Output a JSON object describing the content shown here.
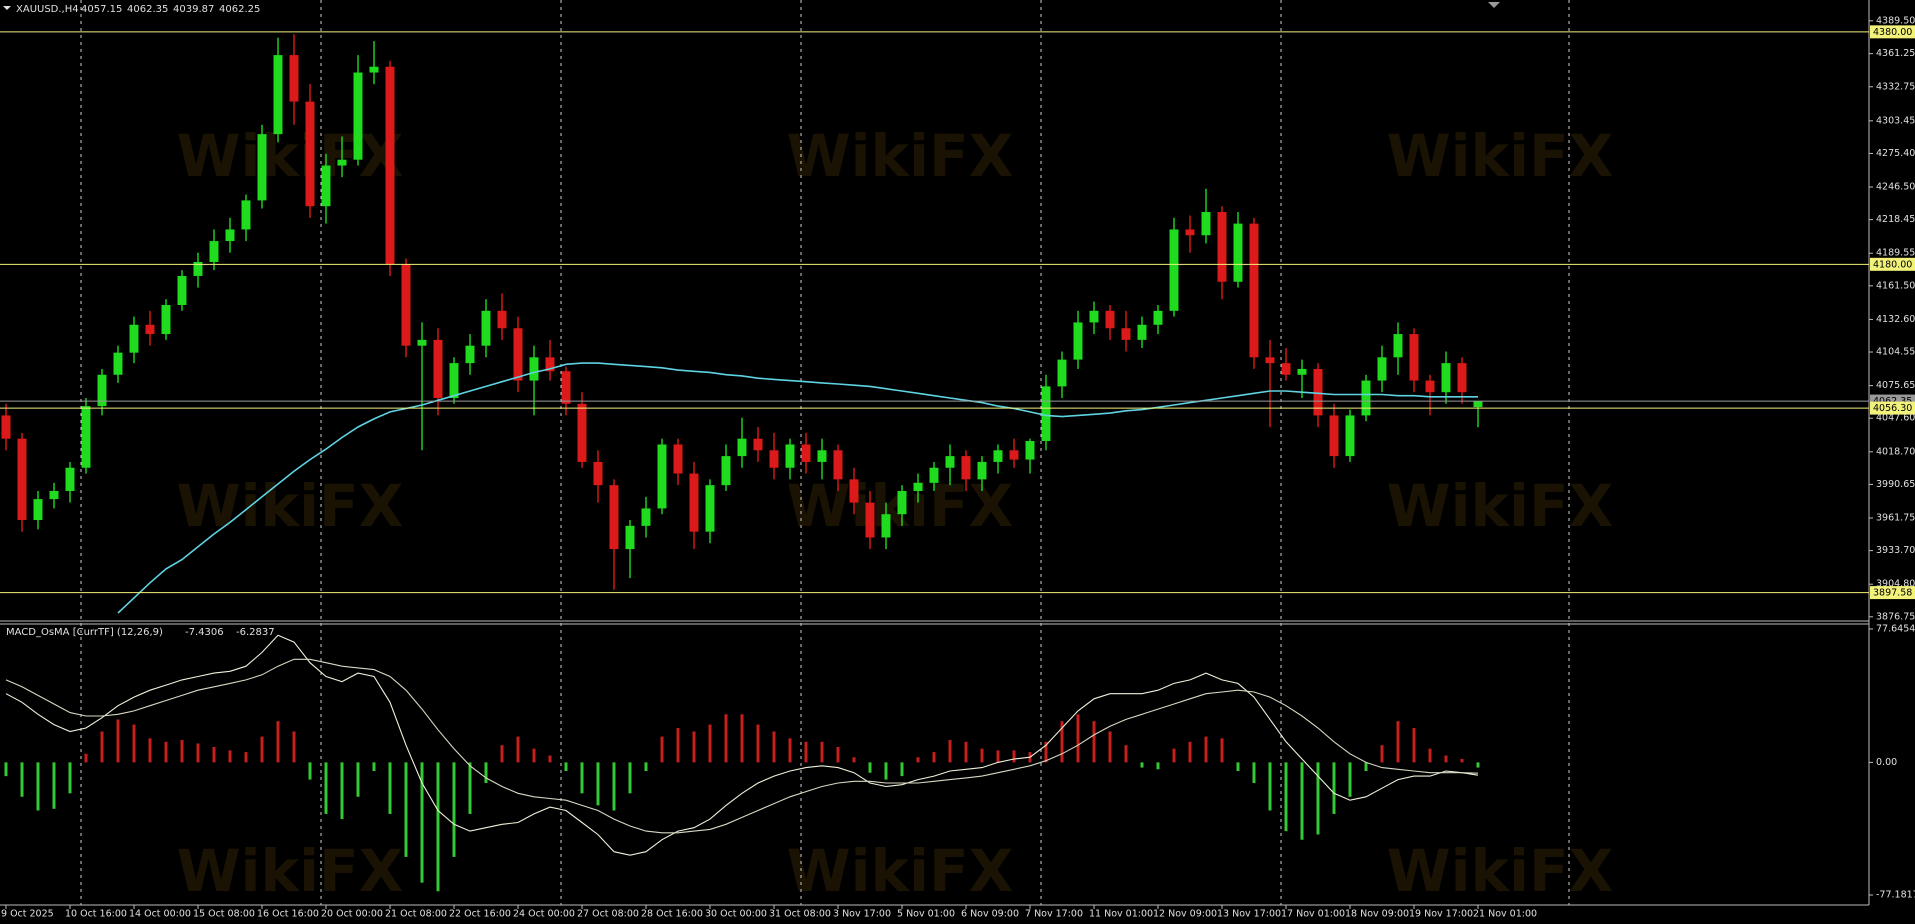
{
  "chart_data": [
    {
      "type": "candlestick",
      "title": "XAUUSD.,H4",
      "categories": [
        "9 Oct 2025",
        null,
        null,
        null,
        "10 Oct 16:00",
        null,
        null,
        null,
        "14 Oct 00:00",
        null,
        null,
        null,
        "15 Oct 08:00",
        null,
        null,
        null,
        "16 Oct 16:00",
        null,
        null,
        null,
        "20 Oct 00:00",
        null,
        null,
        null,
        "21 Oct 08:00",
        null,
        null,
        null,
        "22 Oct 16:00",
        null,
        null,
        null,
        "24 Oct 00:00",
        null,
        null,
        null,
        "27 Oct 08:00",
        null,
        null,
        null,
        "28 Oct 16:00",
        null,
        null,
        null,
        "30 Oct 00:00",
        null,
        null,
        null,
        "31 Oct 08:00",
        null,
        null,
        null,
        "3 Nov 17:00",
        null,
        null,
        null,
        "5 Nov 01:00",
        null,
        null,
        null,
        "6 Nov 09:00",
        null,
        null,
        null,
        "7 Nov 17:00",
        null,
        null,
        null,
        "11 Nov 01:00",
        null,
        null,
        null,
        "12 Nov 09:00",
        null,
        null,
        null,
        "13 Nov 17:00",
        null,
        null,
        null,
        "17 Nov 01:00",
        null,
        null,
        null,
        "18 Nov 09:00",
        null,
        null,
        null,
        "19 Nov 17:00",
        null,
        null,
        null,
        "21 Nov 01:00"
      ],
      "open": [
        4050,
        4030,
        3960,
        3978,
        3985,
        4005,
        4058,
        4085,
        4104,
        4128,
        4120,
        4145,
        4170,
        4182,
        4200,
        4210,
        4235,
        4292,
        4360,
        4320,
        4230,
        4265,
        4270,
        4345,
        4350,
        4180,
        4110,
        4115,
        4065,
        4095,
        4110,
        4140,
        4125,
        4080,
        4100,
        4088,
        4060,
        4010,
        3990,
        3935,
        3955,
        3970,
        4025,
        4000,
        3950,
        3990,
        4015,
        4030,
        4020,
        4005,
        4025,
        4010,
        4020,
        3995,
        3975,
        3945,
        3965,
        3985,
        3992,
        4005,
        4015,
        3995,
        4010,
        4020,
        4012,
        4028,
        4075,
        4098,
        4130,
        4140,
        4125,
        4115,
        4128,
        4140,
        4210,
        4205,
        4225,
        4165,
        4215,
        4100,
        4095,
        4085,
        4090,
        4050,
        4015,
        4050,
        4080,
        4100,
        4120,
        4080,
        4070,
        4095,
        4057.15
      ],
      "high": [
        4060,
        4035,
        3985,
        3992,
        4010,
        4065,
        4090,
        4110,
        4135,
        4140,
        4150,
        4175,
        4190,
        4210,
        4220,
        4240,
        4300,
        4375,
        4378,
        4335,
        4275,
        4290,
        4360,
        4372,
        4355,
        4185,
        4130,
        4125,
        4100,
        4120,
        4150,
        4155,
        4135,
        4110,
        4115,
        4092,
        4070,
        4020,
        3995,
        3960,
        3980,
        4030,
        4030,
        4010,
        3995,
        4025,
        4048,
        4040,
        4035,
        4030,
        4035,
        4030,
        4025,
        4005,
        3985,
        3975,
        3990,
        4000,
        4010,
        4025,
        4020,
        4015,
        4025,
        4030,
        4030,
        4085,
        4105,
        4140,
        4148,
        4145,
        4140,
        4135,
        4145,
        4220,
        4222,
        4245,
        4230,
        4225,
        4220,
        4115,
        4108,
        4098,
        4095,
        4060,
        4055,
        4085,
        4110,
        4130,
        4125,
        4085,
        4105,
        4100,
        4062.35
      ],
      "low": [
        4020,
        3950,
        3952,
        3970,
        3975,
        4000,
        4050,
        4078,
        4095,
        4110,
        4115,
        4140,
        4160,
        4175,
        4190,
        4200,
        4228,
        4285,
        4300,
        4220,
        4215,
        4255,
        4265,
        4335,
        4170,
        4100,
        4020,
        4050,
        4060,
        4085,
        4100,
        4115,
        4070,
        4050,
        4080,
        4050,
        4005,
        3975,
        3900,
        3910,
        3945,
        3965,
        3990,
        3935,
        3940,
        3985,
        4005,
        4010,
        3995,
        3995,
        4000,
        3995,
        3985,
        3965,
        3935,
        3935,
        3955,
        3975,
        3985,
        3990,
        3985,
        3985,
        4000,
        4005,
        4000,
        4020,
        4065,
        4090,
        4120,
        4115,
        4105,
        4108,
        4120,
        4135,
        4190,
        4198,
        4150,
        4160,
        4090,
        4040,
        4080,
        4065,
        4040,
        4005,
        4010,
        4045,
        4070,
        4085,
        4070,
        4050,
        4060,
        4060,
        4039.87
      ],
      "close": [
        4030,
        3960,
        3978,
        3985,
        4005,
        4058,
        4085,
        4104,
        4128,
        4120,
        4145,
        4170,
        4182,
        4200,
        4210,
        4235,
        4292,
        4360,
        4320,
        4230,
        4265,
        4270,
        4345,
        4350,
        4180,
        4110,
        4115,
        4065,
        4095,
        4110,
        4140,
        4125,
        4080,
        4100,
        4088,
        4060,
        4010,
        3990,
        3935,
        3955,
        3970,
        4025,
        4000,
        3950,
        3990,
        4015,
        4030,
        4020,
        4005,
        4025,
        4010,
        4020,
        3995,
        3975,
        3945,
        3965,
        3985,
        3992,
        4005,
        4015,
        3995,
        4010,
        4020,
        4012,
        4028,
        4075,
        4098,
        4130,
        4140,
        4125,
        4115,
        4128,
        4140,
        4210,
        4205,
        4225,
        4165,
        4215,
        4100,
        4095,
        4085,
        4090,
        4050,
        4015,
        4050,
        4080,
        4100,
        4120,
        4080,
        4070,
        4095,
        4070,
        4062.25
      ],
      "up_color": "#1fdc1f",
      "down_color": "#dc1a1a",
      "ma": {
        "color": "#5fd3e2",
        "values": [
          null,
          null,
          null,
          null,
          null,
          null,
          null,
          3880,
          3893,
          3906,
          3918,
          3926,
          3937,
          3948,
          3958,
          3969,
          3980,
          3991,
          4002,
          4012,
          4021,
          4031,
          4040,
          4047,
          4053,
          4056,
          4059,
          4063,
          4067,
          4071,
          4075,
          4079,
          4083,
          4087,
          4090,
          4094,
          4095,
          4095,
          4094,
          4093,
          4092,
          4091,
          4089,
          4088,
          4087,
          4085,
          4084,
          4082,
          4081,
          4080,
          4079,
          4078,
          4077,
          4076,
          4075,
          4073,
          4071,
          4069,
          4067,
          4065,
          4063,
          4061,
          4058,
          4056,
          4053,
          4050,
          4049,
          4050,
          4051,
          4052,
          4054,
          4055,
          4057,
          4059,
          4061,
          4063,
          4065,
          4067,
          4069,
          4071,
          4071,
          4070,
          4069,
          4068,
          4068,
          4068,
          4068,
          4067,
          4067,
          4066,
          4066,
          4066,
          4066
        ]
      },
      "levels": [
        {
          "value": 4380,
          "label": "4380.00",
          "color": "#f2f27a"
        },
        {
          "value": 4180,
          "label": "4180.00",
          "color": "#f2f27a"
        },
        {
          "value": 4062.35,
          "color": "#9a9a9a"
        },
        {
          "value": 4056.3,
          "label": "4056.30",
          "color": "#f2f27a"
        },
        {
          "value": 3897.58,
          "color": "#f2f27a"
        }
      ],
      "ylim": [
        3874.0,
        4407.4
      ],
      "yticks": [
        {
          "value": 4389.5,
          "label": "4389.50"
        },
        4361.25,
        4332.75,
        4303.45,
        {
          "value": 4275.4,
          "label": "4275.40"
        },
        {
          "value": 4246.5,
          "label": "4246.50"
        },
        4218.45,
        4189.55,
        {
          "value": 4161.5,
          "label": "4161.50"
        },
        {
          "value": 4132.6,
          "label": "4132.60"
        },
        4104.55,
        4075.65,
        {
          "value": 4047.6,
          "label": "4047.60"
        },
        {
          "value": 4018.7,
          "label": "4018.70"
        },
        3990.65,
        3961.75,
        {
          "value": 3933.7,
          "label": "3933.70"
        },
        {
          "value": 3904.8,
          "label": "3904.80"
        },
        3876.75
      ],
      "watermark": "WikiFX"
    },
    {
      "type": "macd",
      "title": "MACD_OsMA [CurrTF] (12,26,9)",
      "histogram": {
        "pos_color": "#c81e1e",
        "neg_color": "#35c935",
        "values": [
          -8,
          -20,
          -28,
          -27,
          -18,
          5,
          18,
          25,
          22,
          14,
          12,
          13,
          11,
          9,
          7,
          6,
          15,
          24,
          18,
          -10,
          -30,
          -33,
          -20,
          -5,
          -30,
          -55,
          -70,
          -75,
          -55,
          -30,
          -12,
          10,
          15,
          8,
          4,
          -5,
          -18,
          -25,
          -28,
          -18,
          -5,
          15,
          20,
          18,
          22,
          28,
          28,
          22,
          18,
          14,
          12,
          12,
          9,
          3,
          -6,
          -10,
          -8,
          3,
          6,
          13,
          12,
          8,
          7,
          7,
          6,
          12,
          24,
          28,
          24,
          18,
          10,
          -3,
          -4,
          8,
          12,
          15,
          14,
          -5,
          -12,
          -28,
          -40,
          -45,
          -42,
          -30,
          -20,
          -5,
          10,
          24,
          20,
          8,
          4,
          2,
          -3
        ]
      },
      "macd_line": {
        "color": "#f0f0dc",
        "values": [
          40,
          35,
          28,
          22,
          18,
          20,
          26,
          33,
          38,
          42,
          45,
          48,
          50,
          52,
          53,
          56,
          64,
          74,
          70,
          58,
          50,
          47,
          52,
          50,
          35,
          10,
          -12,
          -28,
          -36,
          -40,
          -38,
          -36,
          -35,
          -30,
          -26,
          -28,
          -35,
          -42,
          -52,
          -54,
          -52,
          -45,
          -40,
          -38,
          -33,
          -25,
          -18,
          -12,
          -8,
          -5,
          -3,
          -2,
          -3,
          -6,
          -12,
          -14,
          -13,
          -10,
          -8,
          -5,
          -4,
          -3,
          0,
          2,
          3,
          10,
          20,
          30,
          37,
          40,
          40,
          40,
          42,
          46,
          48,
          52,
          48,
          46,
          38,
          25,
          12,
          2,
          -8,
          -18,
          -22,
          -20,
          -15,
          -10,
          -8,
          -8,
          -5,
          -6,
          -7.4306
        ]
      },
      "signal_line": {
        "color": "#d8d8c4",
        "values": [
          48,
          44,
          39,
          34,
          29,
          27,
          27,
          28,
          30,
          33,
          36,
          39,
          42,
          44,
          46,
          48,
          51,
          56,
          60,
          60,
          58,
          56,
          55,
          54,
          50,
          42,
          31,
          19,
          8,
          -2,
          -9,
          -14,
          -18,
          -20,
          -21,
          -22,
          -25,
          -28,
          -33,
          -37,
          -40,
          -41,
          -41,
          -40,
          -39,
          -36,
          -32,
          -28,
          -24,
          -20,
          -17,
          -14,
          -12,
          -11,
          -11,
          -12,
          -12,
          -12,
          -11,
          -10,
          -9,
          -8,
          -6,
          -4,
          -2,
          1,
          5,
          10,
          16,
          21,
          25,
          28,
          31,
          34,
          37,
          40,
          41,
          42,
          41,
          38,
          33,
          27,
          20,
          12,
          5,
          0,
          -3,
          -4,
          -5,
          -6,
          -6,
          -6,
          -6.2837
        ]
      },
      "ylim": [
        -80.67,
        79.97
      ],
      "yticks": [
        77.6454,
        {
          "value": 0,
          "label": "0.00"
        },
        -77.1817
      ]
    }
  ]
}
